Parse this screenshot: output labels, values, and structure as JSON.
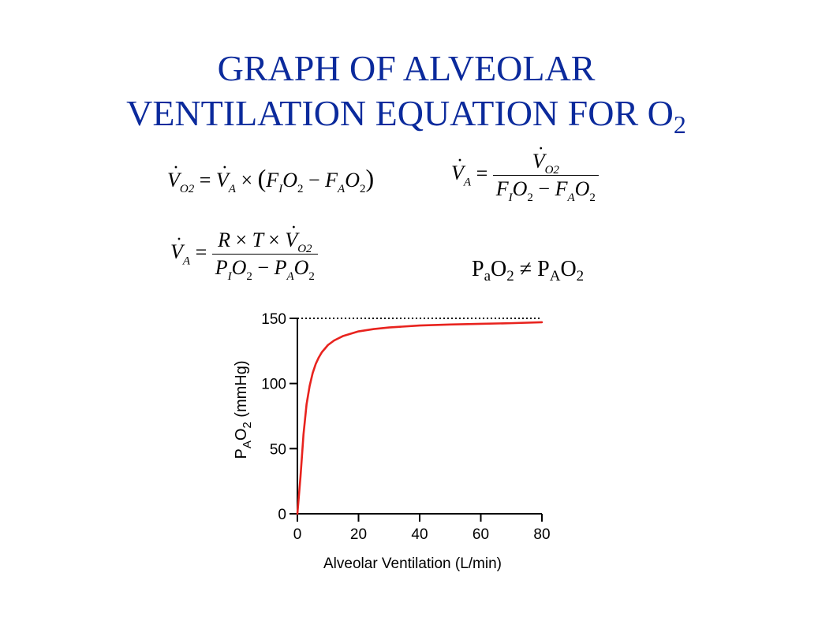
{
  "title": {
    "line1": "GRAPH OF ALVEOLAR",
    "line2_main": "VENTILATION EQUATION FOR O",
    "line2_sub": "2"
  },
  "equations": {
    "eq1": {
      "vo2_sym": "V",
      "vo2_sub": "O2",
      "eq": "=",
      "va_sym": "V",
      "va_sub": "A",
      "times": "×",
      "lparen": "(",
      "f": "F",
      "f_sub_i": "I",
      "o": "O",
      "o_sub": "2",
      "minus": "−",
      "f2": "F",
      "f_sub_a": "A",
      "o2": "O",
      "o2_sub": "2",
      "rparen": ")"
    },
    "eq2": {
      "va_sym": "V",
      "va_sub": "A",
      "eq": "=",
      "num_sym": "V",
      "num_sub": "O2",
      "den_f": "F",
      "den_sub_i": "I",
      "den_o": "O",
      "den_o_sub": "2",
      "minus": "−",
      "den_f2": "F",
      "den_sub_a": "A",
      "den_o2": "O",
      "den_o2_sub": "2"
    },
    "eq3": {
      "va_sym": "V",
      "va_sub": "A",
      "eq": "=",
      "num_r": "R",
      "times": "×",
      "num_t": "T",
      "times2": "×",
      "num_v": "V",
      "num_v_sub": "O2",
      "den_p": "P",
      "den_sub_i": "I",
      "den_o": "O",
      "den_o_sub": "2",
      "minus": "−",
      "den_p2": "P",
      "den_sub_a": "A",
      "den_o2": "O",
      "den_o2_sub": "2"
    },
    "inequality": {
      "p1": "P",
      "p1_sub": "a",
      "o1": "O",
      "o1_sub": "2",
      "neq": "≠",
      "p2": "P",
      "p2_sub": "A",
      "o2": "O",
      "o2_sub": "2"
    }
  },
  "chart_data": {
    "type": "line",
    "ylabel_parts": {
      "p": "P",
      "p_sub": "A",
      "o": "O",
      "o_sub": "2",
      "unit": " (mmHg)"
    },
    "xlabel": "Alveolar Ventilation (L/min)",
    "xlim": [
      0,
      80
    ],
    "ylim": [
      0,
      150
    ],
    "xticks": [
      0,
      20,
      40,
      60,
      80
    ],
    "yticks": [
      0,
      50,
      100,
      150
    ],
    "series": [
      {
        "color": "#e8231e",
        "style": "solid",
        "x": [
          0,
          1,
          2,
          3,
          4,
          5,
          6,
          7,
          8,
          10,
          12,
          15,
          20,
          25,
          30,
          40,
          50,
          60,
          70,
          80
        ],
        "y": [
          0,
          28,
          61,
          84,
          98,
          108,
          115,
          120,
          124,
          129.5,
          133,
          136.5,
          140,
          141.8,
          143,
          144.5,
          145.3,
          145.8,
          146.3,
          147
        ]
      },
      {
        "color": "#000000",
        "style": "dotted",
        "x": [
          0,
          80
        ],
        "y": [
          150,
          150
        ]
      }
    ],
    "grid": false
  }
}
